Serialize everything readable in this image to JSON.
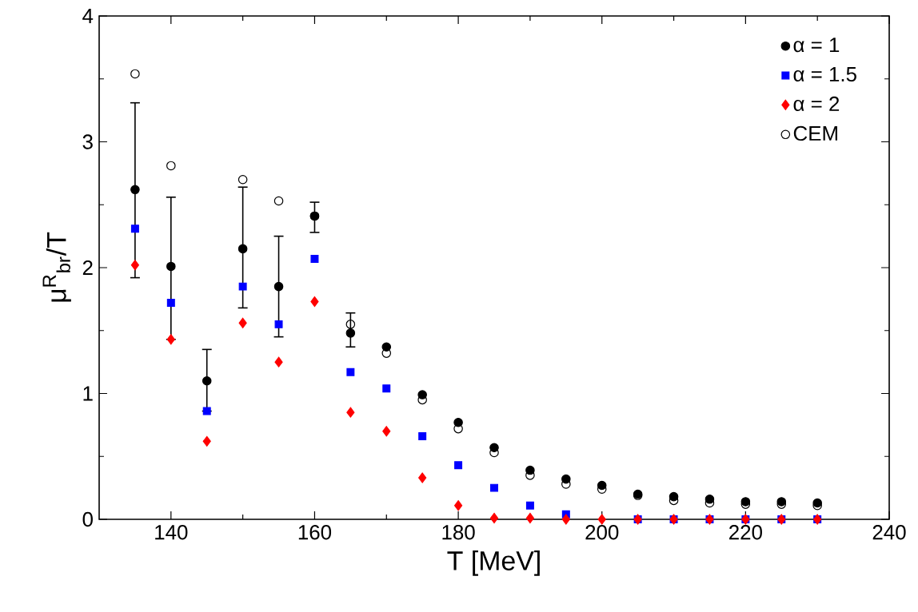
{
  "chart_data": {
    "type": "scatter",
    "xlabel": "T [MeV]",
    "ylabel": "μ$^{R}$$_{br}$/T",
    "x": [
      135,
      140,
      145,
      150,
      155,
      160,
      165,
      170,
      175,
      180,
      185,
      190,
      195,
      200,
      205,
      210,
      215,
      220,
      225,
      230
    ],
    "xlim": [
      130,
      240
    ],
    "xticks": [
      140,
      160,
      180,
      200,
      220,
      240
    ],
    "ylim": [
      0,
      4
    ],
    "yticks": [
      0,
      1,
      2,
      3,
      4
    ],
    "grid": false,
    "legend": "top right",
    "series": [
      {
        "name": "α = 1",
        "color": "#000000",
        "marker": "circle",
        "values": [
          2.62,
          2.01,
          1.1,
          2.15,
          1.85,
          2.41,
          1.48,
          1.37,
          0.99,
          0.77,
          0.57,
          0.39,
          0.32,
          0.27,
          0.2,
          0.18,
          0.16,
          0.14,
          0.14,
          0.13
        ],
        "errors": [
          [
            1.92,
            3.31
          ],
          [
            1.43,
            2.56
          ],
          [
            0.86,
            1.35
          ],
          [
            1.68,
            2.64
          ],
          [
            1.45,
            2.25
          ],
          [
            2.28,
            2.52
          ],
          [
            1.37,
            1.64
          ],
          null,
          null,
          null,
          null,
          null,
          null,
          null,
          null,
          null,
          null,
          null,
          null,
          null
        ]
      },
      {
        "name": "α = 1.5",
        "color": "#0000ff",
        "marker": "square",
        "values": [
          2.31,
          1.72,
          0.86,
          1.85,
          1.55,
          2.07,
          1.17,
          1.04,
          0.66,
          0.43,
          0.25,
          0.11,
          0.04,
          null,
          0,
          0,
          0,
          0,
          0,
          0
        ]
      },
      {
        "name": "α = 2",
        "color": "#ff0000",
        "marker": "diamond",
        "values": [
          2.02,
          1.43,
          0.62,
          1.56,
          1.25,
          1.73,
          0.85,
          0.7,
          0.33,
          0.11,
          0.01,
          0.01,
          0,
          0,
          0,
          0,
          0,
          0,
          0,
          0
        ]
      },
      {
        "name": "CEM",
        "color": "#000000",
        "marker": "open circle",
        "values": [
          3.54,
          2.81,
          null,
          2.7,
          2.53,
          2.41,
          1.55,
          1.32,
          0.95,
          0.72,
          0.53,
          0.35,
          0.28,
          0.24,
          0.19,
          0.15,
          0.13,
          0.12,
          0.12,
          0.11
        ]
      }
    ]
  }
}
